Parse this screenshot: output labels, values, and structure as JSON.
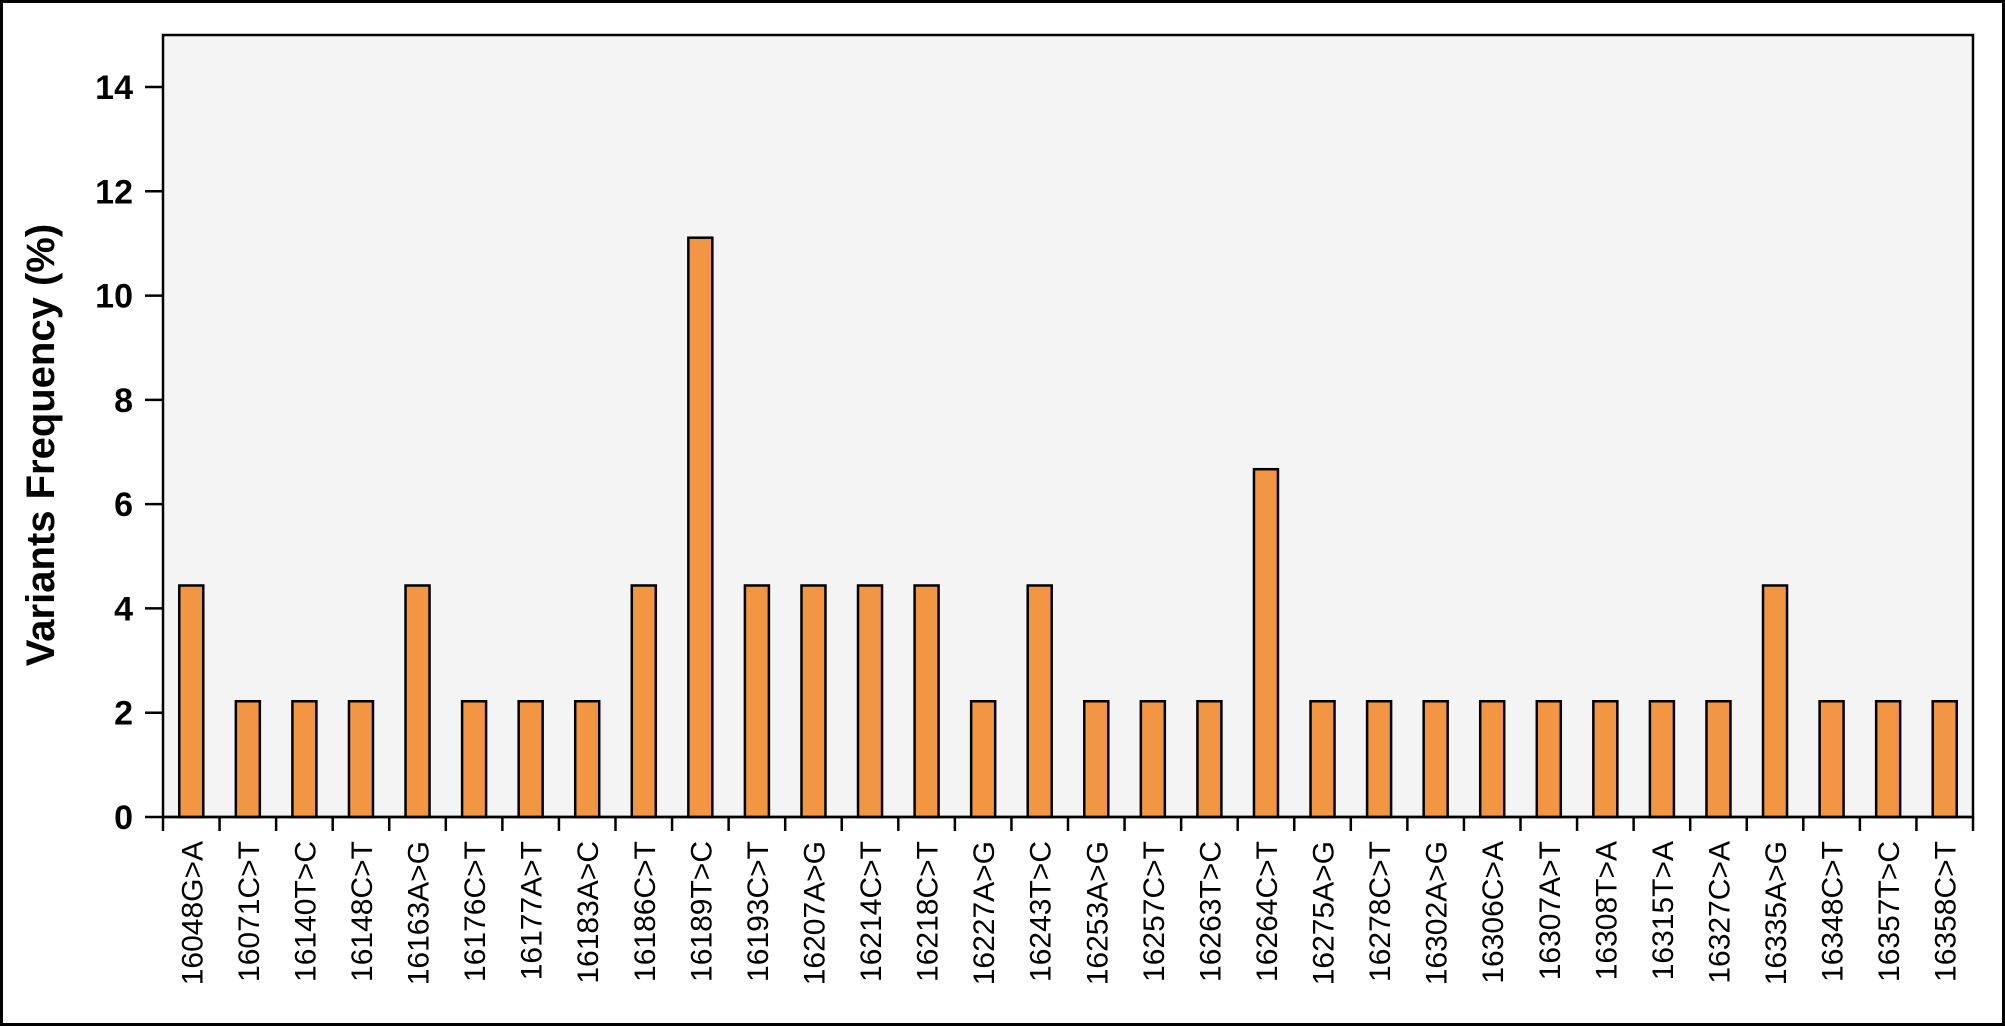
{
  "chart_data": {
    "type": "bar",
    "title": "",
    "xlabel": "",
    "ylabel": "Variants Frequency (%)",
    "ylim": [
      0,
      15
    ],
    "yticks": [
      0,
      2,
      4,
      6,
      8,
      10,
      12,
      14
    ],
    "grid": false,
    "categories": [
      "16048G>A",
      "16071C>T",
      "16140T>C",
      "16148C>T",
      "16163A>G",
      "16176C>T",
      "16177A>T",
      "16183A>C",
      "16186C>T",
      "16189T>C",
      "16193C>T",
      "16207A>G",
      "16214C>T",
      "16218C>T",
      "16227A>G",
      "16243T>C",
      "16253A>G",
      "16257C>T",
      "16263T>C",
      "16264C>T",
      "16275A>G",
      "16278C>T",
      "16302A>G",
      "16306C>A",
      "16307A>T",
      "16308T>A",
      "16315T>A",
      "16327C>A",
      "16335A>G",
      "16348C>T",
      "16357T>C",
      "16358C>T"
    ],
    "values": [
      4.44,
      2.22,
      2.22,
      2.22,
      4.44,
      2.22,
      2.22,
      2.22,
      4.44,
      11.11,
      4.44,
      4.44,
      4.44,
      4.44,
      2.22,
      4.44,
      2.22,
      2.22,
      2.22,
      6.67,
      2.22,
      2.22,
      2.22,
      2.22,
      2.22,
      2.22,
      2.22,
      2.22,
      4.44,
      2.22,
      2.22,
      2.22
    ],
    "colors": {
      "bar": "#f39644",
      "plot_background": "#f4f4f4",
      "outline": "#000000"
    }
  }
}
